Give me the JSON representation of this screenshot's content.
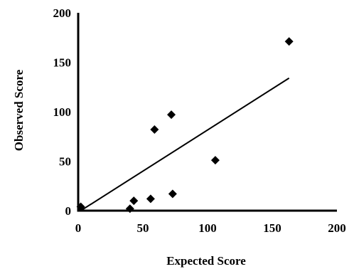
{
  "chart_data": {
    "type": "scatter",
    "xlabel": "Expected Score",
    "ylabel": "Observed Score",
    "xlim": [
      0,
      200
    ],
    "ylim": [
      0,
      200
    ],
    "xticks": [
      "0",
      "50",
      "100",
      "150",
      "200"
    ],
    "yticks": [
      "0",
      "50",
      "100",
      "150",
      "200"
    ],
    "grid": false,
    "points": [
      {
        "x": 2,
        "y": 4
      },
      {
        "x": 40,
        "y": 2
      },
      {
        "x": 43,
        "y": 10
      },
      {
        "x": 56,
        "y": 12
      },
      {
        "x": 59,
        "y": 82
      },
      {
        "x": 72,
        "y": 97
      },
      {
        "x": 73,
        "y": 17
      },
      {
        "x": 106,
        "y": 51
      },
      {
        "x": 163,
        "y": 171
      }
    ],
    "trendline": {
      "x1": 2,
      "y1": 0,
      "x2": 163,
      "y2": 134
    },
    "marker_color": "#000000",
    "line_color": "#000000"
  }
}
